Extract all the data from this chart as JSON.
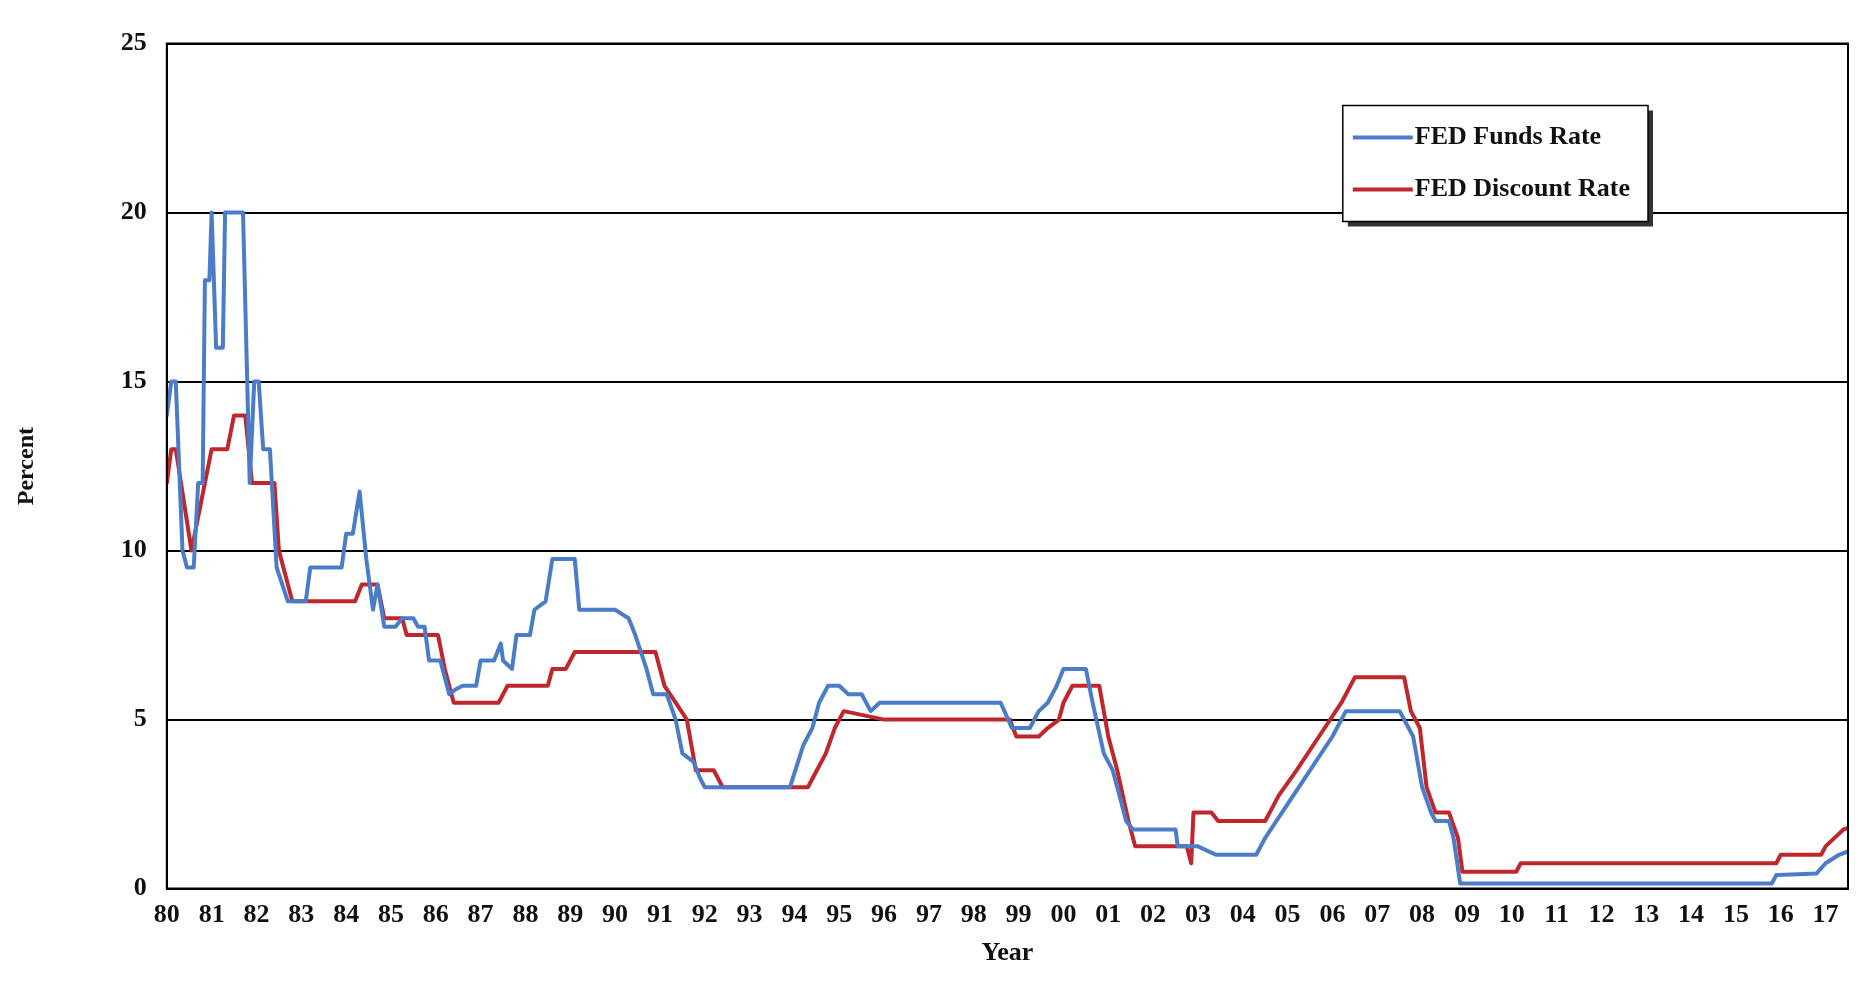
{
  "chart_data": {
    "type": "line",
    "xlabel": "Year",
    "ylabel": "Percent",
    "xlim": [
      1980,
      2017.5
    ],
    "xticks": [
      {
        "value": 1980,
        "label": "80"
      },
      {
        "value": 1981,
        "label": "81"
      },
      {
        "value": 1982,
        "label": "82"
      },
      {
        "value": 1983,
        "label": "83"
      },
      {
        "value": 1984,
        "label": "84"
      },
      {
        "value": 1985,
        "label": "85"
      },
      {
        "value": 1986,
        "label": "86"
      },
      {
        "value": 1987,
        "label": "87"
      },
      {
        "value": 1988,
        "label": "88"
      },
      {
        "value": 1989,
        "label": "89"
      },
      {
        "value": 1990,
        "label": "90"
      },
      {
        "value": 1991,
        "label": "91"
      },
      {
        "value": 1992,
        "label": "92"
      },
      {
        "value": 1993,
        "label": "93"
      },
      {
        "value": 1994,
        "label": "94"
      },
      {
        "value": 1995,
        "label": "95"
      },
      {
        "value": 1996,
        "label": "96"
      },
      {
        "value": 1997,
        "label": "97"
      },
      {
        "value": 1998,
        "label": "98"
      },
      {
        "value": 1999,
        "label": "99"
      },
      {
        "value": 2000,
        "label": "00"
      },
      {
        "value": 2001,
        "label": "01"
      },
      {
        "value": 2002,
        "label": "02"
      },
      {
        "value": 2003,
        "label": "03"
      },
      {
        "value": 2004,
        "label": "04"
      },
      {
        "value": 2005,
        "label": "05"
      },
      {
        "value": 2006,
        "label": "06"
      },
      {
        "value": 2007,
        "label": "07"
      },
      {
        "value": 2008,
        "label": "08"
      },
      {
        "value": 2009,
        "label": "09"
      },
      {
        "value": 2010,
        "label": "10"
      },
      {
        "value": 2011,
        "label": "11"
      },
      {
        "value": 2012,
        "label": "12"
      },
      {
        "value": 2013,
        "label": "13"
      },
      {
        "value": 2014,
        "label": "14"
      },
      {
        "value": 2015,
        "label": "15"
      },
      {
        "value": 2016,
        "label": "16"
      },
      {
        "value": 2017,
        "label": "17"
      }
    ],
    "ylim": [
      0,
      25
    ],
    "yticks": [
      0,
      5,
      10,
      15,
      20,
      25
    ],
    "grid": "y",
    "legend": "top right",
    "marker": "none",
    "line_style": "solid",
    "series": [
      {
        "name": "FED Funds Rate",
        "color": "#4a7cc8",
        "x": [
          1980.0,
          1980.1,
          1980.2,
          1980.35,
          1980.45,
          1980.6,
          1980.7,
          1980.8,
          1980.85,
          1980.95,
          1981.0,
          1981.1,
          1981.25,
          1981.3,
          1981.7,
          1981.85,
          1981.95,
          1982.05,
          1982.15,
          1982.3,
          1982.45,
          1982.7,
          1983.1,
          1983.2,
          1983.9,
          1984.0,
          1984.15,
          1984.3,
          1984.45,
          1984.6,
          1984.7,
          1984.85,
          1985.1,
          1985.25,
          1985.5,
          1985.6,
          1985.75,
          1985.85,
          1986.1,
          1986.3,
          1986.45,
          1986.6,
          1986.9,
          1987.0,
          1987.3,
          1987.45,
          1987.5,
          1987.7,
          1987.8,
          1988.1,
          1988.2,
          1988.45,
          1988.6,
          1988.8,
          1989.1,
          1989.2,
          1990.0,
          1990.3,
          1990.45,
          1990.7,
          1990.85,
          1991.15,
          1991.35,
          1991.5,
          1991.75,
          1991.9,
          1992.0,
          1993.9,
          1994.2,
          1994.4,
          1994.55,
          1994.75,
          1995.0,
          1995.2,
          1995.5,
          1995.7,
          1995.9,
          1998.6,
          1998.85,
          1999.25,
          1999.45,
          1999.65,
          1999.85,
          2000.0,
          2000.5,
          2000.65,
          2000.9,
          2001.1,
          2001.4,
          2001.55,
          2002.5,
          2002.55,
          2003.0,
          2003.4,
          2004.3,
          2004.5,
          2005.0,
          2005.5,
          2006.0,
          2006.3,
          2007.5,
          2007.8,
          2008.0,
          2008.2,
          2008.3,
          2008.6,
          2008.7,
          2008.85,
          2015.8,
          2015.9,
          2016.8,
          2017.0,
          2017.3,
          2017.5
        ],
        "values": [
          14,
          15,
          15,
          10,
          9.5,
          9.5,
          12,
          12,
          18,
          18,
          20,
          16,
          16,
          20,
          20,
          12,
          15,
          15,
          13,
          13,
          9.5,
          8.5,
          8.5,
          9.5,
          9.5,
          10.5,
          10.5,
          11.75,
          9.75,
          8.25,
          9,
          7.75,
          7.75,
          8,
          8,
          7.75,
          7.75,
          6.75,
          6.75,
          5.75,
          5.9,
          6,
          6,
          6.75,
          6.75,
          7.25,
          6.75,
          6.5,
          7.5,
          7.5,
          8.25,
          8.5,
          9.75,
          9.75,
          9.75,
          8.25,
          8.25,
          8,
          7.5,
          6.5,
          5.75,
          5.75,
          5,
          4,
          3.75,
          3.25,
          3,
          3,
          4.25,
          4.75,
          5.5,
          6,
          6,
          5.75,
          5.75,
          5.25,
          5.5,
          5.5,
          4.75,
          4.75,
          5.25,
          5.5,
          6,
          6.5,
          6.5,
          5.5,
          4,
          3.5,
          2,
          1.75,
          1.75,
          1.25,
          1.25,
          1,
          1,
          1.5,
          2.5,
          3.5,
          4.5,
          5.25,
          5.25,
          4.5,
          3,
          2.25,
          2,
          2,
          1.5,
          0.15,
          0.15,
          0.4,
          0.45,
          0.75,
          1,
          1.1
        ]
      },
      {
        "name": "FED Discount Rate",
        "color": "#c0272d",
        "x": [
          1980.0,
          1980.1,
          1980.2,
          1980.55,
          1980.7,
          1980.85,
          1981.0,
          1981.35,
          1981.5,
          1981.75,
          1981.9,
          1982.4,
          1982.5,
          1982.8,
          1984.2,
          1984.35,
          1984.7,
          1984.85,
          1985.25,
          1985.35,
          1986.05,
          1986.2,
          1986.4,
          1987.4,
          1987.6,
          1988.5,
          1988.6,
          1988.9,
          1989.1,
          1990.9,
          1991.1,
          1991.35,
          1991.6,
          1991.8,
          1992.2,
          1992.4,
          1994.3,
          1994.5,
          1994.7,
          1994.9,
          1995.1,
          1996.0,
          1998.8,
          1998.95,
          1999.45,
          1999.65,
          1999.9,
          2000.0,
          2000.2,
          2000.8,
          2001.0,
          2001.2,
          2001.45,
          2001.6,
          2002.75,
          2002.85,
          2002.9,
          2003.3,
          2003.45,
          2004.5,
          2004.8,
          2005.2,
          2005.7,
          2006.2,
          2006.5,
          2007.6,
          2007.75,
          2007.95,
          2008.1,
          2008.3,
          2008.6,
          2008.8,
          2008.9,
          2010.1,
          2010.2,
          2015.9,
          2016.0,
          2016.9,
          2017.0,
          2017.2,
          2017.4,
          2017.5
        ],
        "values": [
          12,
          13,
          13,
          10,
          11,
          12,
          13,
          13,
          14,
          14,
          12,
          12,
          10,
          8.5,
          8.5,
          9,
          9,
          8,
          8,
          7.5,
          7.5,
          6.5,
          5.5,
          5.5,
          6,
          6,
          6.5,
          6.5,
          7,
          7,
          6,
          5.5,
          5,
          3.5,
          3.5,
          3,
          3,
          3.5,
          4,
          4.75,
          5.25,
          5,
          5,
          4.5,
          4.5,
          4.75,
          5,
          5.5,
          6,
          6,
          4.5,
          3.5,
          2,
          1.25,
          1.25,
          0.75,
          2.25,
          2.25,
          2,
          2,
          2.75,
          3.5,
          4.5,
          5.5,
          6.25,
          6.25,
          5.25,
          4.75,
          3,
          2.25,
          2.25,
          1.5,
          0.5,
          0.5,
          0.75,
          0.75,
          1,
          1,
          1.25,
          1.5,
          1.75,
          1.8
        ]
      }
    ]
  }
}
